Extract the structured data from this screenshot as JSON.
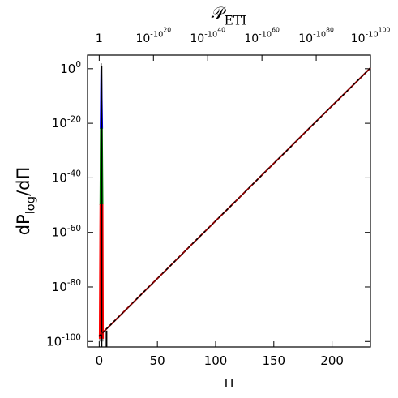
{
  "chart_data": {
    "type": "line",
    "xlabel": "Π",
    "ylabel": {
      "text": "dP",
      "sub": "log",
      "tail": "/dΠ"
    },
    "x2label": {
      "text": "𝒫",
      "sub": "ETI"
    },
    "log_y": true,
    "xlim": [
      -10,
      233
    ],
    "ylim": [
      1e-102,
      100000.0
    ],
    "xticks": [
      0,
      50,
      100,
      150,
      200
    ],
    "yticks": [
      {
        "value": 1,
        "label": "10",
        "sup": "0"
      },
      {
        "value": 1e-20,
        "label": "10",
        "sup": "-20"
      },
      {
        "value": 1e-40,
        "label": "10",
        "sup": "-40"
      },
      {
        "value": 1e-60,
        "label": "10",
        "sup": "-60"
      },
      {
        "value": 1e-80,
        "label": "10",
        "sup": "-80"
      },
      {
        "value": 1e-100,
        "label": "10",
        "sup": "-100"
      }
    ],
    "x2ticks": [
      {
        "value": 0,
        "label": "1"
      },
      {
        "value": 46.6,
        "label": "10",
        "sup": "-10",
        "sup2": "20"
      },
      {
        "value": 93.2,
        "label": "10",
        "sup": "-10",
        "sup2": "40"
      },
      {
        "value": 139.8,
        "label": "10",
        "sup": "-10",
        "sup2": "60"
      },
      {
        "value": 186.4,
        "label": "10",
        "sup": "-10",
        "sup2": "80"
      },
      {
        "value": 233,
        "label": "10",
        "sup": "-10",
        "sup2": "100"
      }
    ],
    "series": [
      {
        "color": "#999999",
        "x": [
          0.6,
          1.8,
          3.0
        ],
        "values": [
          1e-100,
          100,
          1e-100
        ]
      },
      {
        "color": "#0000ff",
        "x": [
          1.2,
          1.8,
          2.6
        ],
        "values": [
          1e-22,
          1,
          1e-22
        ]
      },
      {
        "color": "#008000",
        "x": [
          1.0,
          1.4,
          2.4,
          2.9
        ],
        "values": [
          1e-50,
          1e-22,
          1e-22,
          1e-50
        ]
      },
      {
        "color": "#ff0000",
        "x": [
          0.4,
          1.0,
          2.9,
          3.3
        ],
        "values": [
          1e-99,
          1e-50,
          1e-50,
          1e-99
        ]
      },
      {
        "color": "#000000",
        "x": [
          2,
          2
        ],
        "values": [
          1e-102,
          10
        ]
      },
      {
        "color": "#000000",
        "x": [
          6.3,
          6.3
        ],
        "values": [
          1e-102,
          1e-96
        ]
      },
      {
        "color": "#8b0000",
        "dotted": true,
        "x": [
          0,
          20,
          40,
          60,
          80,
          100,
          120,
          140,
          160,
          180,
          200,
          220,
          233
        ],
        "values": [
          1e-98,
          2.5e-90,
          7.9e-82,
          2e-73,
          6.3e-65,
          1.6e-56,
          4e-48,
          1.3e-39,
          3.2e-31,
          1e-22,
          2.5e-14,
          6.3e-06,
          2
        ]
      }
    ]
  }
}
